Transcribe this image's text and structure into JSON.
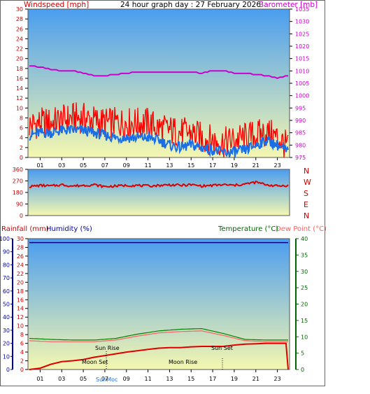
{
  "header": {
    "left": "Windspeed [mph]",
    "center": "24 hour graph day : 27 February 2026",
    "right": "Barometer [mb]"
  },
  "colors": {
    "wind_axis": "#cc0000",
    "baro_axis": "#cc00cc",
    "dir_axis": "#cc0000",
    "rain_axis": "#cc0000",
    "humid_axis": "#0000aa",
    "temp_axis": "#006600",
    "dew_axis": "#ff6060",
    "sky_top": "#4a9df0",
    "sky_bottom": "#f5f7b0"
  },
  "chart_data": [
    {
      "type": "line",
      "panel": "wind-baro",
      "x_ticks": [
        "01",
        "03",
        "05",
        "07",
        "09",
        "11",
        "13",
        "15",
        "17",
        "19",
        "21",
        "23"
      ],
      "y_left_ticks": [
        "0",
        "2",
        "4",
        "6",
        "8",
        "10",
        "12",
        "14",
        "16",
        "18",
        "20",
        "22",
        "24",
        "26",
        "28",
        "30"
      ],
      "y_left_range": [
        0,
        30
      ],
      "y_right_ticks": [
        "975",
        "980",
        "985",
        "990",
        "995",
        "1000",
        "1005",
        "1010",
        "1015",
        "1020",
        "1025",
        "1030",
        "1035"
      ],
      "y_right_range": [
        975,
        1035
      ],
      "series": [
        {
          "name": "Windspeed",
          "axis": "left",
          "color": "#ff0000",
          "x": [
            0,
            1,
            2,
            3,
            4,
            5,
            6,
            7,
            8,
            9,
            10,
            11,
            12,
            13,
            14,
            15,
            16,
            17,
            18,
            19,
            20,
            21,
            22,
            23,
            24
          ],
          "y": [
            6.5,
            7,
            7,
            7.5,
            8,
            8,
            7.5,
            7,
            7,
            7,
            7,
            7,
            6,
            5.5,
            5,
            5,
            4,
            3.5,
            3,
            3.5,
            4,
            4.5,
            5,
            4,
            2
          ]
        },
        {
          "name": "Gust",
          "axis": "left",
          "color": "#1a6fe8",
          "x": [
            0,
            1,
            2,
            3,
            4,
            5,
            6,
            7,
            8,
            9,
            10,
            11,
            12,
            13,
            14,
            15,
            16,
            17,
            18,
            19,
            20,
            21,
            22,
            23,
            24
          ],
          "y": [
            4.5,
            5,
            5,
            5.5,
            5.5,
            5.5,
            5,
            4.5,
            4,
            4,
            4,
            4,
            3.5,
            2.5,
            2,
            2.5,
            2,
            1.5,
            1,
            1,
            1.5,
            2.5,
            3.5,
            2.5,
            1
          ]
        },
        {
          "name": "Barometer",
          "axis": "right",
          "color": "#cc00cc",
          "x": [
            0,
            1,
            2,
            3,
            4,
            5,
            6,
            7,
            8,
            9,
            10,
            11,
            12,
            13,
            14,
            15,
            16,
            17,
            18,
            19,
            20,
            21,
            22,
            23,
            24
          ],
          "y": [
            1012,
            1011.5,
            1010.5,
            1010,
            1010,
            1009,
            1008,
            1008,
            1008.5,
            1009,
            1009.5,
            1009.5,
            1009.5,
            1009.5,
            1009.5,
            1009.5,
            1009,
            1010,
            1010,
            1009,
            1009,
            1008.5,
            1008,
            1007,
            1008
          ]
        }
      ]
    },
    {
      "type": "line",
      "panel": "wind-direction",
      "y_ticks": [
        "0",
        "90",
        "180",
        "270",
        "360"
      ],
      "y_range": [
        0,
        360
      ],
      "compass_labels": [
        "N",
        "W",
        "S",
        "E",
        "N"
      ],
      "series": [
        {
          "name": "Wind direction",
          "color": "#dd0000",
          "x": [
            0,
            1,
            2,
            3,
            4,
            5,
            6,
            7,
            8,
            9,
            10,
            11,
            12,
            13,
            14,
            15,
            16,
            17,
            18,
            19,
            20,
            21,
            22,
            23,
            24
          ],
          "y": [
            225,
            235,
            230,
            240,
            230,
            235,
            240,
            225,
            230,
            235,
            235,
            230,
            235,
            240,
            235,
            240,
            230,
            235,
            240,
            235,
            245,
            260,
            240,
            230,
            235
          ]
        }
      ]
    },
    {
      "type": "line",
      "panel": "rain-humid-temp",
      "title_left": "Rainfall (mm)",
      "title_left2": "Humidity (%)",
      "title_right": "Temperature (°C)",
      "title_right2": "Dew Point (°C)",
      "humidity_ticks": [
        "0",
        "10",
        "20",
        "30",
        "40",
        "50",
        "60",
        "70",
        "80",
        "90",
        "100"
      ],
      "humidity_range": [
        0,
        100
      ],
      "rain_ticks": [
        "0",
        "2",
        "4",
        "6",
        "8",
        "10",
        "12",
        "14",
        "16",
        "18",
        "20",
        "22",
        "24",
        "26",
        "28",
        "30"
      ],
      "rain_range": [
        0,
        30
      ],
      "temp_ticks": [
        "0",
        "5",
        "10",
        "15",
        "20",
        "25",
        "30",
        "35",
        "40"
      ],
      "temp_range": [
        0,
        40
      ],
      "annotations": [
        "Sun Rise",
        "Moon Set",
        "Sun Set",
        "Moon Rise",
        "SunMoc"
      ],
      "series": [
        {
          "name": "Humidity",
          "axis": "humidity",
          "color": "#000080",
          "x": [
            0,
            24
          ],
          "y": [
            97,
            97
          ]
        },
        {
          "name": "Temperature",
          "axis": "temp",
          "color": "#008000",
          "x": [
            0,
            2,
            4,
            6,
            8,
            10,
            12,
            14,
            16,
            18,
            20,
            22,
            24
          ],
          "y": [
            9.5,
            9.2,
            9,
            9,
            9.5,
            10.8,
            11.8,
            12.3,
            12.5,
            11,
            9.2,
            9,
            9
          ]
        },
        {
          "name": "Dew Point",
          "axis": "temp",
          "color": "#ff6060",
          "x": [
            0,
            2,
            4,
            6,
            8,
            10,
            12,
            14,
            16,
            18,
            20,
            22,
            24
          ],
          "y": [
            8.8,
            8.5,
            8.5,
            8.5,
            9,
            10.2,
            11.2,
            11.6,
            11.8,
            10.4,
            8.8,
            8.5,
            8.5
          ]
        },
        {
          "name": "Rainfall",
          "axis": "rain",
          "color": "#e00000",
          "x": [
            0,
            1,
            2,
            3,
            4,
            5,
            6,
            7,
            8,
            9,
            10,
            11,
            12,
            13,
            14,
            15,
            16,
            17,
            18,
            19,
            20,
            21,
            22,
            23,
            23.8,
            24
          ],
          "y": [
            0,
            0.3,
            1.2,
            1.8,
            2,
            2.3,
            2.8,
            3.2,
            3.6,
            4,
            4.3,
            4.6,
            4.9,
            5,
            5,
            5.2,
            5.3,
            5.3,
            5.3,
            5.6,
            5.8,
            5.9,
            6,
            6,
            6,
            0
          ]
        }
      ]
    }
  ]
}
